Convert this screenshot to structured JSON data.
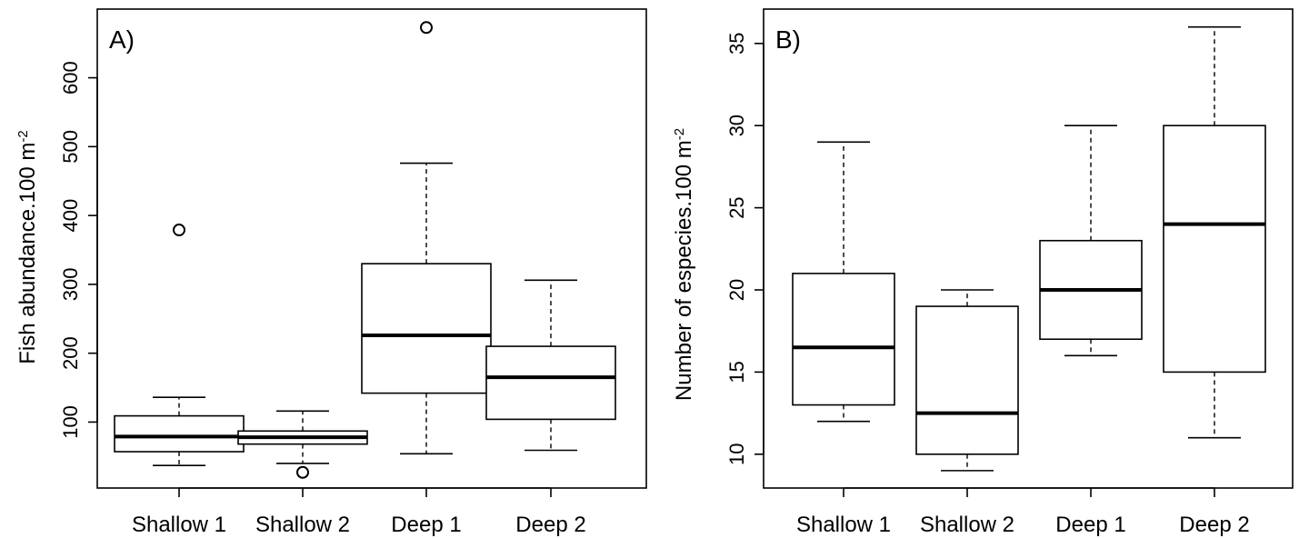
{
  "chart_data": [
    {
      "type": "box",
      "panel_label": "A)",
      "ylabel": "Fish abundance.100 m",
      "ylabel_sup": "-2",
      "categories": [
        "Shallow 1",
        "Shallow 2",
        "Deep 1",
        "Deep 2"
      ],
      "yticks": [
        100,
        200,
        300,
        400,
        500,
        600
      ],
      "ylim": [
        0,
        700
      ],
      "boxes": [
        {
          "min": 37,
          "q1": 57,
          "median": 79,
          "q3": 109,
          "max": 136,
          "outliers": [
            379
          ]
        },
        {
          "min": 40,
          "q1": 68,
          "median": 78,
          "q3": 87,
          "max": 116,
          "outliers": [
            27
          ]
        },
        {
          "min": 54,
          "q1": 142,
          "median": 226,
          "q3": 330,
          "max": 476,
          "outliers": [
            673
          ]
        },
        {
          "min": 59,
          "q1": 104,
          "median": 165,
          "q3": 210,
          "max": 306,
          "outliers": []
        }
      ]
    },
    {
      "type": "box",
      "panel_label": "B)",
      "ylabel": "Number of especies.100 m",
      "ylabel_sup": "-2",
      "categories": [
        "Shallow 1",
        "Shallow 2",
        "Deep 1",
        "Deep 2"
      ],
      "yticks": [
        10,
        15,
        20,
        25,
        30,
        35
      ],
      "ylim": [
        8,
        37
      ],
      "boxes": [
        {
          "min": 12,
          "q1": 13,
          "median": 16.5,
          "q3": 21,
          "max": 29,
          "outliers": []
        },
        {
          "min": 9,
          "q1": 10,
          "median": 12.5,
          "q3": 19,
          "max": 20,
          "outliers": []
        },
        {
          "min": 16,
          "q1": 17,
          "median": 20,
          "q3": 23,
          "max": 30,
          "outliers": []
        },
        {
          "min": 11,
          "q1": 15,
          "median": 24,
          "q3": 30,
          "max": 36,
          "outliers": []
        }
      ]
    }
  ]
}
